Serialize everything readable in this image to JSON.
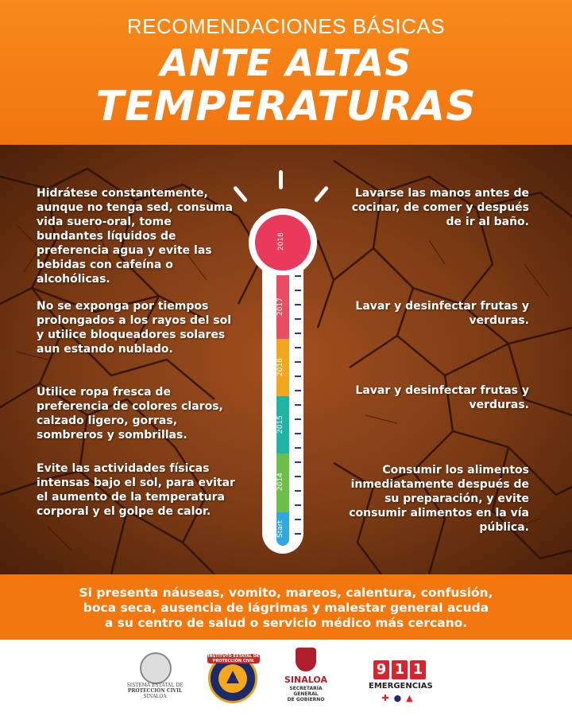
{
  "header": {
    "subtitle": "RECOMENDACIONES BÁSICAS",
    "title_line1": "ANTE ALTAS",
    "title_line2": "TEMPERATURAS"
  },
  "left_tips": [
    "Hidrátese constantemente, aunque no tenga sed, consuma vida suero-oral, tome bundantes líquidos de preferencia agua y evite las bebidas con cafeína o alcohólicas.",
    "No se exponga por tiempos prolongados a los rayos del sol y utilice bloqueadores solares aun estando nublado.",
    "Utilice ropa fresca de preferencia de colores claros, calzado ligero, gorras, sombreros y sombrillas.",
    "Evite las actividades físicas intensas bajo el sol, para evitar el aumento de la temperatura corporal y el golpe de calor."
  ],
  "right_tips": [
    "Lavarse las manos antes de cocinar, de comer y después de ir al baño.",
    "Lavar y desinfectar frutas y verduras.",
    "Lavar y desinfectar frutas y verduras.",
    "Consumir los alimentos inmediatamente después de su preparación,  y evite consumir alimentos en la vía pública."
  ],
  "thermometer": {
    "bulb_label": "2018",
    "segments": [
      {
        "label": "2017",
        "color": "#e94e63"
      },
      {
        "label": "2016",
        "color": "#f2a71c"
      },
      {
        "label": "2015",
        "color": "#1fb4a3"
      },
      {
        "label": "2014",
        "color": "#6cc04a"
      },
      {
        "label": "Start",
        "color": "#2fa9e0"
      }
    ]
  },
  "bottom_message": {
    "line1": "Si presenta náuseas, vomito, mareos, calentura, confusión,",
    "line2": "boca seca, ausencia de lágrimas y malestar general acuda",
    "line3": "a su centro de salud o servicio médico más cercano."
  },
  "footer": {
    "proteccion_civil": {
      "line1": "SISTEMA ESTATAL DE",
      "line2": "PROTECCIÓN CIVIL",
      "line3": "SINALOA"
    },
    "instituto_label": "INSTITUTO ESTATAL DE PROTECCIÓN CIVIL",
    "sinaloa": {
      "name": "SINALOA",
      "line1": "SECRETARÍA",
      "line2": "GENERAL",
      "line3": "DE GOBIERNO"
    },
    "emergencias": {
      "d1": "9",
      "d2": "1",
      "d3": "1",
      "label": "EMERGENCIAS"
    }
  },
  "colors": {
    "orange": "#f2770f",
    "bulb": "#e93a5b",
    "soil": "#7a3a14"
  }
}
